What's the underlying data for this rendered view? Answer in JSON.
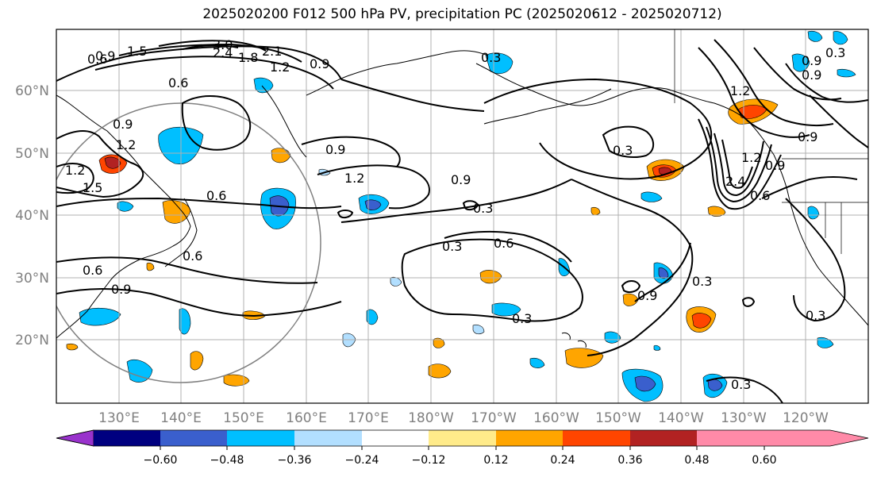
{
  "title": "2025020200 F012 500 hPa PV, precipitation PC (2025020612 - 2025020712)",
  "latitude_labels": [
    "60°N",
    "50°N",
    "40°N",
    "30°N",
    "20°N"
  ],
  "longitude_labels": [
    "130°E",
    "140°E",
    "150°E",
    "160°E",
    "170°E",
    "180°W",
    "170°W",
    "160°W",
    "150°W",
    "140°W",
    "130°W",
    "120°W"
  ],
  "colorbar": {
    "ticks": [
      "−0.60",
      "−0.48",
      "−0.36",
      "−0.24",
      "−0.12",
      "0.12",
      "0.24",
      "0.36",
      "0.48",
      "0.60"
    ],
    "colors": [
      "#9932cc",
      "#000080",
      "#3a5fcd",
      "#00bfff",
      "#b2dfff",
      "#ffffff",
      "#ffeb8a",
      "#ffa500",
      "#ff4500",
      "#b22222",
      "#ff8aa8"
    ]
  },
  "contour_labels": [
    "0.6",
    "1.5",
    "3.0",
    "2.4",
    "1.8",
    "2.1",
    "1.2",
    "0.9",
    "0.3",
    "0.6",
    "0.9",
    "1.2",
    "1.5",
    "1.2",
    "0.9",
    "0.6",
    "0.9",
    "1.2",
    "0.9",
    "0.6",
    "0.3",
    "0.6",
    "0.3",
    "0.3",
    "0.9",
    "0.3",
    "0.3",
    "0.9",
    "0.3",
    "1.2",
    "0.9",
    "0.6",
    "2.4",
    "1.2",
    "0.9",
    "0.9",
    "0.9",
    "0.6",
    "0.3",
    "0.3"
  ],
  "colors": {
    "label_gray": "#808080",
    "grid": "#b0b0b0"
  }
}
